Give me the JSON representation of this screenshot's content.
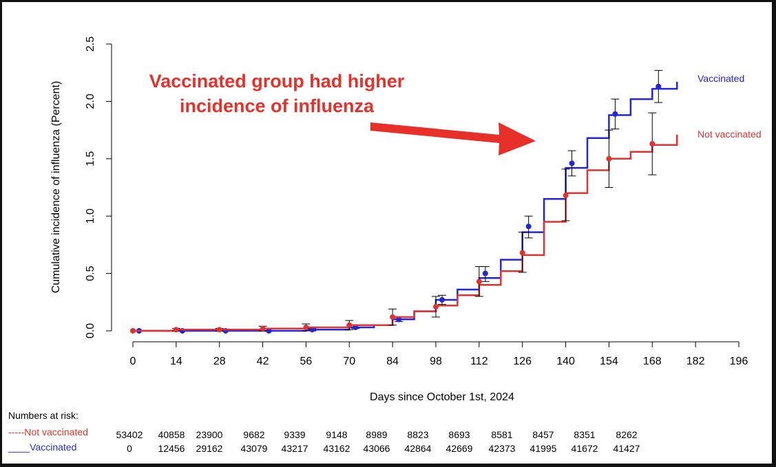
{
  "chart_data": {
    "type": "line",
    "xlabel": "Days since October 1st, 2024",
    "ylabel": "Cumulative incidence of influenza (Percent)",
    "xlim": [
      0,
      196
    ],
    "ylim": [
      0,
      2.5
    ],
    "x_ticks": [
      0,
      14,
      28,
      42,
      56,
      70,
      84,
      98,
      112,
      126,
      140,
      154,
      168,
      182,
      196
    ],
    "y_ticks": [
      "0.0",
      "0.5",
      "1.0",
      "1.5",
      "2.0",
      "2.5"
    ],
    "annotation": {
      "line1": "Vaccinated group had higher",
      "line2": "incidence of influenza",
      "color": "#e8302a"
    },
    "series": [
      {
        "name": "Vaccinated",
        "color": "#2424d9",
        "curve": [
          [
            0,
            0.0
          ],
          [
            14,
            0.0
          ],
          [
            28,
            0.0
          ],
          [
            42,
            0.0
          ],
          [
            56,
            0.01
          ],
          [
            70,
            0.03
          ],
          [
            78,
            0.05
          ],
          [
            84,
            0.1
          ],
          [
            91,
            0.17
          ],
          [
            98,
            0.27
          ],
          [
            105,
            0.36
          ],
          [
            112,
            0.46
          ],
          [
            119,
            0.62
          ],
          [
            126,
            0.86
          ],
          [
            133,
            1.15
          ],
          [
            140,
            1.42
          ],
          [
            147,
            1.68
          ],
          [
            154,
            1.88
          ],
          [
            161,
            2.02
          ],
          [
            168,
            2.11
          ],
          [
            176,
            2.17
          ]
        ],
        "points": [
          {
            "x": 2,
            "y": 0.0,
            "lo": 0.0,
            "hi": 0.0
          },
          {
            "x": 16,
            "y": 0.0,
            "lo": 0.0,
            "hi": 0.0
          },
          {
            "x": 30,
            "y": 0.0,
            "lo": 0.0,
            "hi": 0.0
          },
          {
            "x": 44,
            "y": 0.0,
            "lo": 0.0,
            "hi": 0.0
          },
          {
            "x": 58,
            "y": 0.01,
            "lo": 0.0,
            "hi": 0.02
          },
          {
            "x": 72,
            "y": 0.03,
            "lo": 0.02,
            "hi": 0.05
          },
          {
            "x": 86,
            "y": 0.1,
            "lo": 0.08,
            "hi": 0.12
          },
          {
            "x": 100,
            "y": 0.27,
            "lo": 0.23,
            "hi": 0.31
          },
          {
            "x": 114,
            "y": 0.5,
            "lo": 0.43,
            "hi": 0.56
          },
          {
            "x": 128,
            "y": 0.91,
            "lo": 0.81,
            "hi": 1.0
          },
          {
            "x": 142,
            "y": 1.46,
            "lo": 1.35,
            "hi": 1.57
          },
          {
            "x": 156,
            "y": 1.89,
            "lo": 1.76,
            "hi": 2.02
          },
          {
            "x": 170,
            "y": 2.13,
            "lo": 1.99,
            "hi": 2.27
          }
        ]
      },
      {
        "name": "Not vaccinated",
        "color": "#dd3333",
        "curve": [
          [
            0,
            0.0
          ],
          [
            14,
            0.01
          ],
          [
            28,
            0.01
          ],
          [
            42,
            0.02
          ],
          [
            56,
            0.03
          ],
          [
            70,
            0.05
          ],
          [
            84,
            0.12
          ],
          [
            91,
            0.17
          ],
          [
            98,
            0.22
          ],
          [
            105,
            0.31
          ],
          [
            112,
            0.4
          ],
          [
            119,
            0.52
          ],
          [
            126,
            0.66
          ],
          [
            133,
            0.95
          ],
          [
            140,
            1.2
          ],
          [
            147,
            1.4
          ],
          [
            154,
            1.5
          ],
          [
            161,
            1.56
          ],
          [
            168,
            1.62
          ],
          [
            176,
            1.71
          ]
        ],
        "points": [
          {
            "x": 0,
            "y": 0.0,
            "lo": 0.0,
            "hi": 0.0
          },
          {
            "x": 14,
            "y": 0.01,
            "lo": 0.0,
            "hi": 0.02
          },
          {
            "x": 28,
            "y": 0.01,
            "lo": 0.0,
            "hi": 0.02
          },
          {
            "x": 42,
            "y": 0.02,
            "lo": 0.0,
            "hi": 0.04
          },
          {
            "x": 56,
            "y": 0.03,
            "lo": 0.0,
            "hi": 0.06
          },
          {
            "x": 70,
            "y": 0.05,
            "lo": 0.01,
            "hi": 0.09
          },
          {
            "x": 84,
            "y": 0.12,
            "lo": 0.05,
            "hi": 0.19
          },
          {
            "x": 98,
            "y": 0.21,
            "lo": 0.12,
            "hi": 0.3
          },
          {
            "x": 112,
            "y": 0.43,
            "lo": 0.3,
            "hi": 0.56
          },
          {
            "x": 126,
            "y": 0.68,
            "lo": 0.51,
            "hi": 0.86
          },
          {
            "x": 140,
            "y": 1.18,
            "lo": 0.96,
            "hi": 1.41
          },
          {
            "x": 154,
            "y": 1.5,
            "lo": 1.25,
            "hi": 1.75
          },
          {
            "x": 168,
            "y": 1.63,
            "lo": 1.36,
            "hi": 1.9
          }
        ]
      }
    ]
  },
  "risk_table": {
    "title": "Numbers at risk:",
    "not_vaccinated_label": "-----Not vaccinated",
    "vaccinated_label": "____Vaccinated",
    "not_vaccinated": [
      "53402",
      "40858",
      "23900",
      "9682",
      "9339",
      "9148",
      "8989",
      "8823",
      "8693",
      "8581",
      "8457",
      "8351",
      "8262"
    ],
    "vaccinated": [
      "0",
      "12456",
      "29162",
      "43079",
      "43217",
      "43162",
      "43066",
      "42864",
      "42669",
      "42373",
      "41995",
      "41672",
      "41427"
    ]
  }
}
